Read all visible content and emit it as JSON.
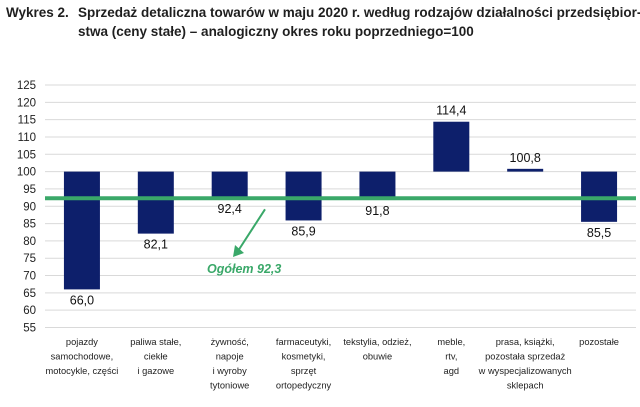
{
  "title": {
    "prefix": "Wykres 2.",
    "line1": "Sprzedaż detaliczna towarów w maju 2020 r. według rodzajów działalności przedsiębior-",
    "line2": "stwa (ceny stałe) – analogiczny okres roku poprzedniego=100"
  },
  "chart_data": {
    "type": "bar",
    "baseline": 100,
    "categories": [
      [
        "pojazdy",
        "samochodowe,",
        "motocykle, części"
      ],
      [
        "paliwa stałe,",
        "ciekłe",
        "i gazowe"
      ],
      [
        "żywność,",
        "napoje",
        "i wyroby",
        "tytoniowe"
      ],
      [
        "farmaceutyki,",
        "kosmetyki,",
        "sprzęt",
        "ortopedyczny"
      ],
      [
        "tekstylia, odzież,",
        "obuwie"
      ],
      [
        "meble,",
        "rtv,",
        "agd"
      ],
      [
        "prasa, książki,",
        "pozostała sprzedaż",
        "w wyspecjalizowanych",
        "sklepach"
      ],
      [
        "pozostałe"
      ]
    ],
    "values": [
      66.0,
      82.1,
      92.4,
      85.9,
      91.8,
      114.4,
      100.8,
      85.5
    ],
    "value_labels": [
      "66,0",
      "82,1",
      "92,4",
      "85,9",
      "91,8",
      "114,4",
      "100,8",
      "85,5"
    ],
    "ylim": [
      55,
      125
    ],
    "yticks": [
      55,
      60,
      65,
      70,
      75,
      80,
      85,
      90,
      95,
      100,
      105,
      110,
      115,
      120,
      125
    ],
    "grid": true,
    "bar_color": "#0d1f6b",
    "reference_line": {
      "value": 92.3,
      "label": "Ogółem 92,3",
      "color": "#3aa869"
    }
  }
}
